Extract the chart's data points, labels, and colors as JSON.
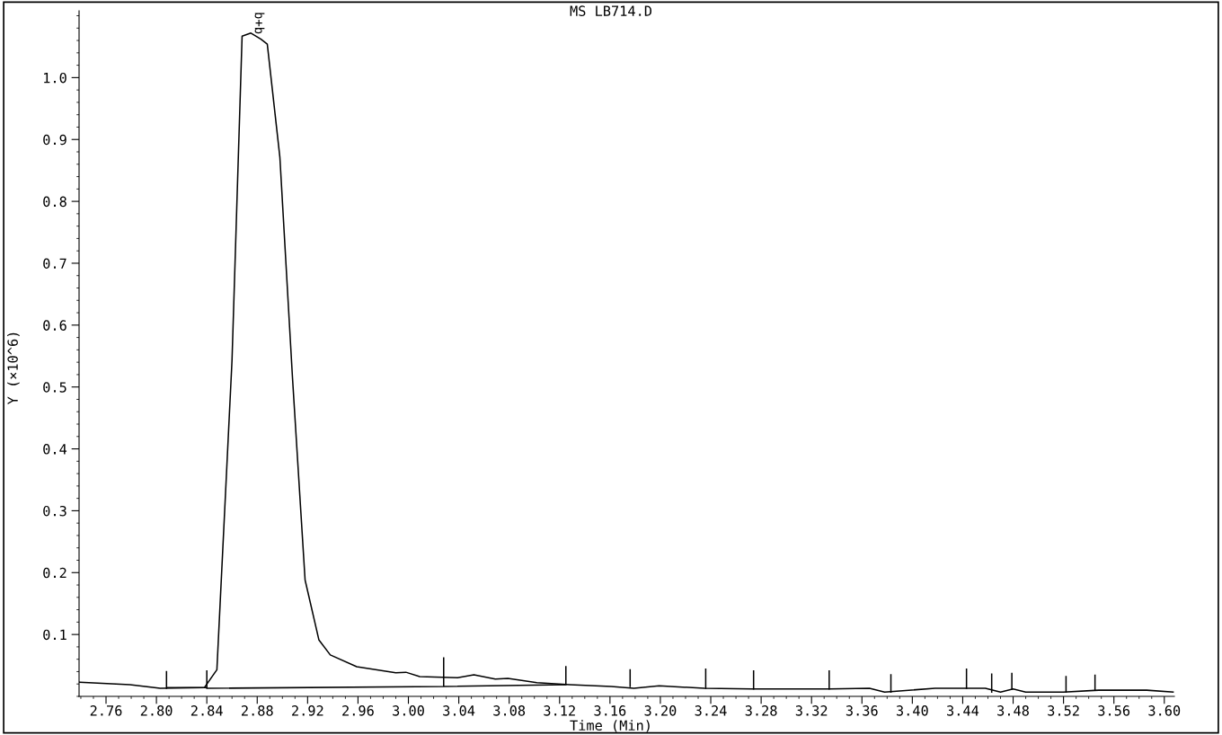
{
  "chart_data": {
    "type": "line",
    "title": "MS LB714.D",
    "xlabel": "Time (Min)",
    "ylabel": "Y (×10^6)",
    "xlim": [
      2.7386,
      3.608
    ],
    "ylim": [
      0,
      1.108
    ],
    "xticks": [
      {
        "value": 2.76,
        "label": "2.76"
      },
      {
        "value": 2.8,
        "label": "2.80"
      },
      {
        "value": 2.84,
        "label": "2.84"
      },
      {
        "value": 2.88,
        "label": "2.88"
      },
      {
        "value": 2.92,
        "label": "2.92"
      },
      {
        "value": 2.96,
        "label": "2.96"
      },
      {
        "value": 3.0,
        "label": "3.00"
      },
      {
        "value": 3.04,
        "label": "3.04"
      },
      {
        "value": 3.08,
        "label": "3.08"
      },
      {
        "value": 3.12,
        "label": "3.12"
      },
      {
        "value": 3.16,
        "label": "3.16"
      },
      {
        "value": 3.2,
        "label": "3.20"
      },
      {
        "value": 3.24,
        "label": "3.24"
      },
      {
        "value": 3.28,
        "label": "3.28"
      },
      {
        "value": 3.32,
        "label": "3.32"
      },
      {
        "value": 3.36,
        "label": "3.36"
      },
      {
        "value": 3.4,
        "label": "3.40"
      },
      {
        "value": 3.44,
        "label": "3.44"
      },
      {
        "value": 3.48,
        "label": "3.48"
      },
      {
        "value": 3.52,
        "label": "3.52"
      },
      {
        "value": 3.56,
        "label": "3.56"
      },
      {
        "value": 3.6,
        "label": "3.60"
      }
    ],
    "yticks": [
      {
        "value": 0.1,
        "label": "0.1"
      },
      {
        "value": 0.2,
        "label": "0.2"
      },
      {
        "value": 0.3,
        "label": "0.3"
      },
      {
        "value": 0.4,
        "label": "0.4"
      },
      {
        "value": 0.5,
        "label": "0.5"
      },
      {
        "value": 0.6,
        "label": "0.6"
      },
      {
        "value": 0.7,
        "label": "0.7"
      },
      {
        "value": 0.8,
        "label": "0.8"
      },
      {
        "value": 0.9,
        "label": "0.9"
      },
      {
        "value": 1.0,
        "label": "1.0"
      }
    ],
    "grid": false,
    "marker": "none",
    "line_style": "solid",
    "annotations": [
      {
        "text": "b+b",
        "x": 2.881,
        "y": 1.07
      }
    ],
    "series": [
      {
        "color": "#000000",
        "x": [
          2.739,
          2.779,
          2.803,
          2.838,
          2.848,
          2.86,
          2.868,
          2.875,
          2.883,
          2.888,
          2.898,
          2.908,
          2.918,
          2.929,
          2.938,
          2.959,
          2.99,
          2.998,
          3.009,
          3.039,
          3.052,
          3.069,
          3.079,
          3.102,
          3.128,
          3.161,
          3.179,
          3.199,
          3.235,
          3.273,
          3.334,
          3.366,
          3.378,
          3.418,
          3.458,
          3.47,
          3.48,
          3.49,
          3.52,
          3.548,
          3.564,
          3.586,
          3.607
        ],
        "values": [
          0.023,
          0.019,
          0.013,
          0.014,
          0.043,
          0.543,
          1.067,
          1.072,
          1.062,
          1.054,
          0.871,
          0.515,
          0.188,
          0.091,
          0.067,
          0.048,
          0.038,
          0.039,
          0.032,
          0.03,
          0.035,
          0.028,
          0.029,
          0.022,
          0.019,
          0.016,
          0.013,
          0.017,
          0.013,
          0.012,
          0.012,
          0.013,
          0.007,
          0.013,
          0.013,
          0.007,
          0.012,
          0.007,
          0.007,
          0.01,
          0.01,
          0.01,
          0.007
        ]
      },
      {
        "color": "#000000",
        "x": [
          2.808,
          2.84,
          null,
          2.84,
          3.028,
          null,
          3.028,
          3.125,
          null,
          2.808,
          2.808,
          null,
          2.84,
          2.84,
          null,
          3.028,
          3.028,
          null,
          3.125,
          3.125,
          null,
          3.176,
          3.176,
          null,
          3.236,
          3.236,
          null,
          3.274,
          3.274,
          null,
          3.334,
          3.334,
          null,
          3.383,
          3.383,
          null,
          3.443,
          3.443,
          null,
          3.463,
          3.463,
          null,
          3.479,
          3.479,
          null,
          3.522,
          3.522,
          null,
          3.545,
          3.545
        ],
        "values": [
          0.014,
          0.014,
          null,
          0.013,
          0.016,
          null,
          0.016,
          0.019,
          null,
          0.013,
          0.04,
          null,
          0.014,
          0.041,
          null,
          0.016,
          0.062,
          null,
          0.019,
          0.048,
          null,
          0.016,
          0.043,
          null,
          0.013,
          0.044,
          null,
          0.012,
          0.041,
          null,
          0.012,
          0.041,
          null,
          0.007,
          0.035,
          null,
          0.013,
          0.044,
          null,
          0.007,
          0.036,
          null,
          0.012,
          0.037,
          null,
          0.007,
          0.032,
          null,
          0.01,
          0.034
        ]
      }
    ]
  }
}
